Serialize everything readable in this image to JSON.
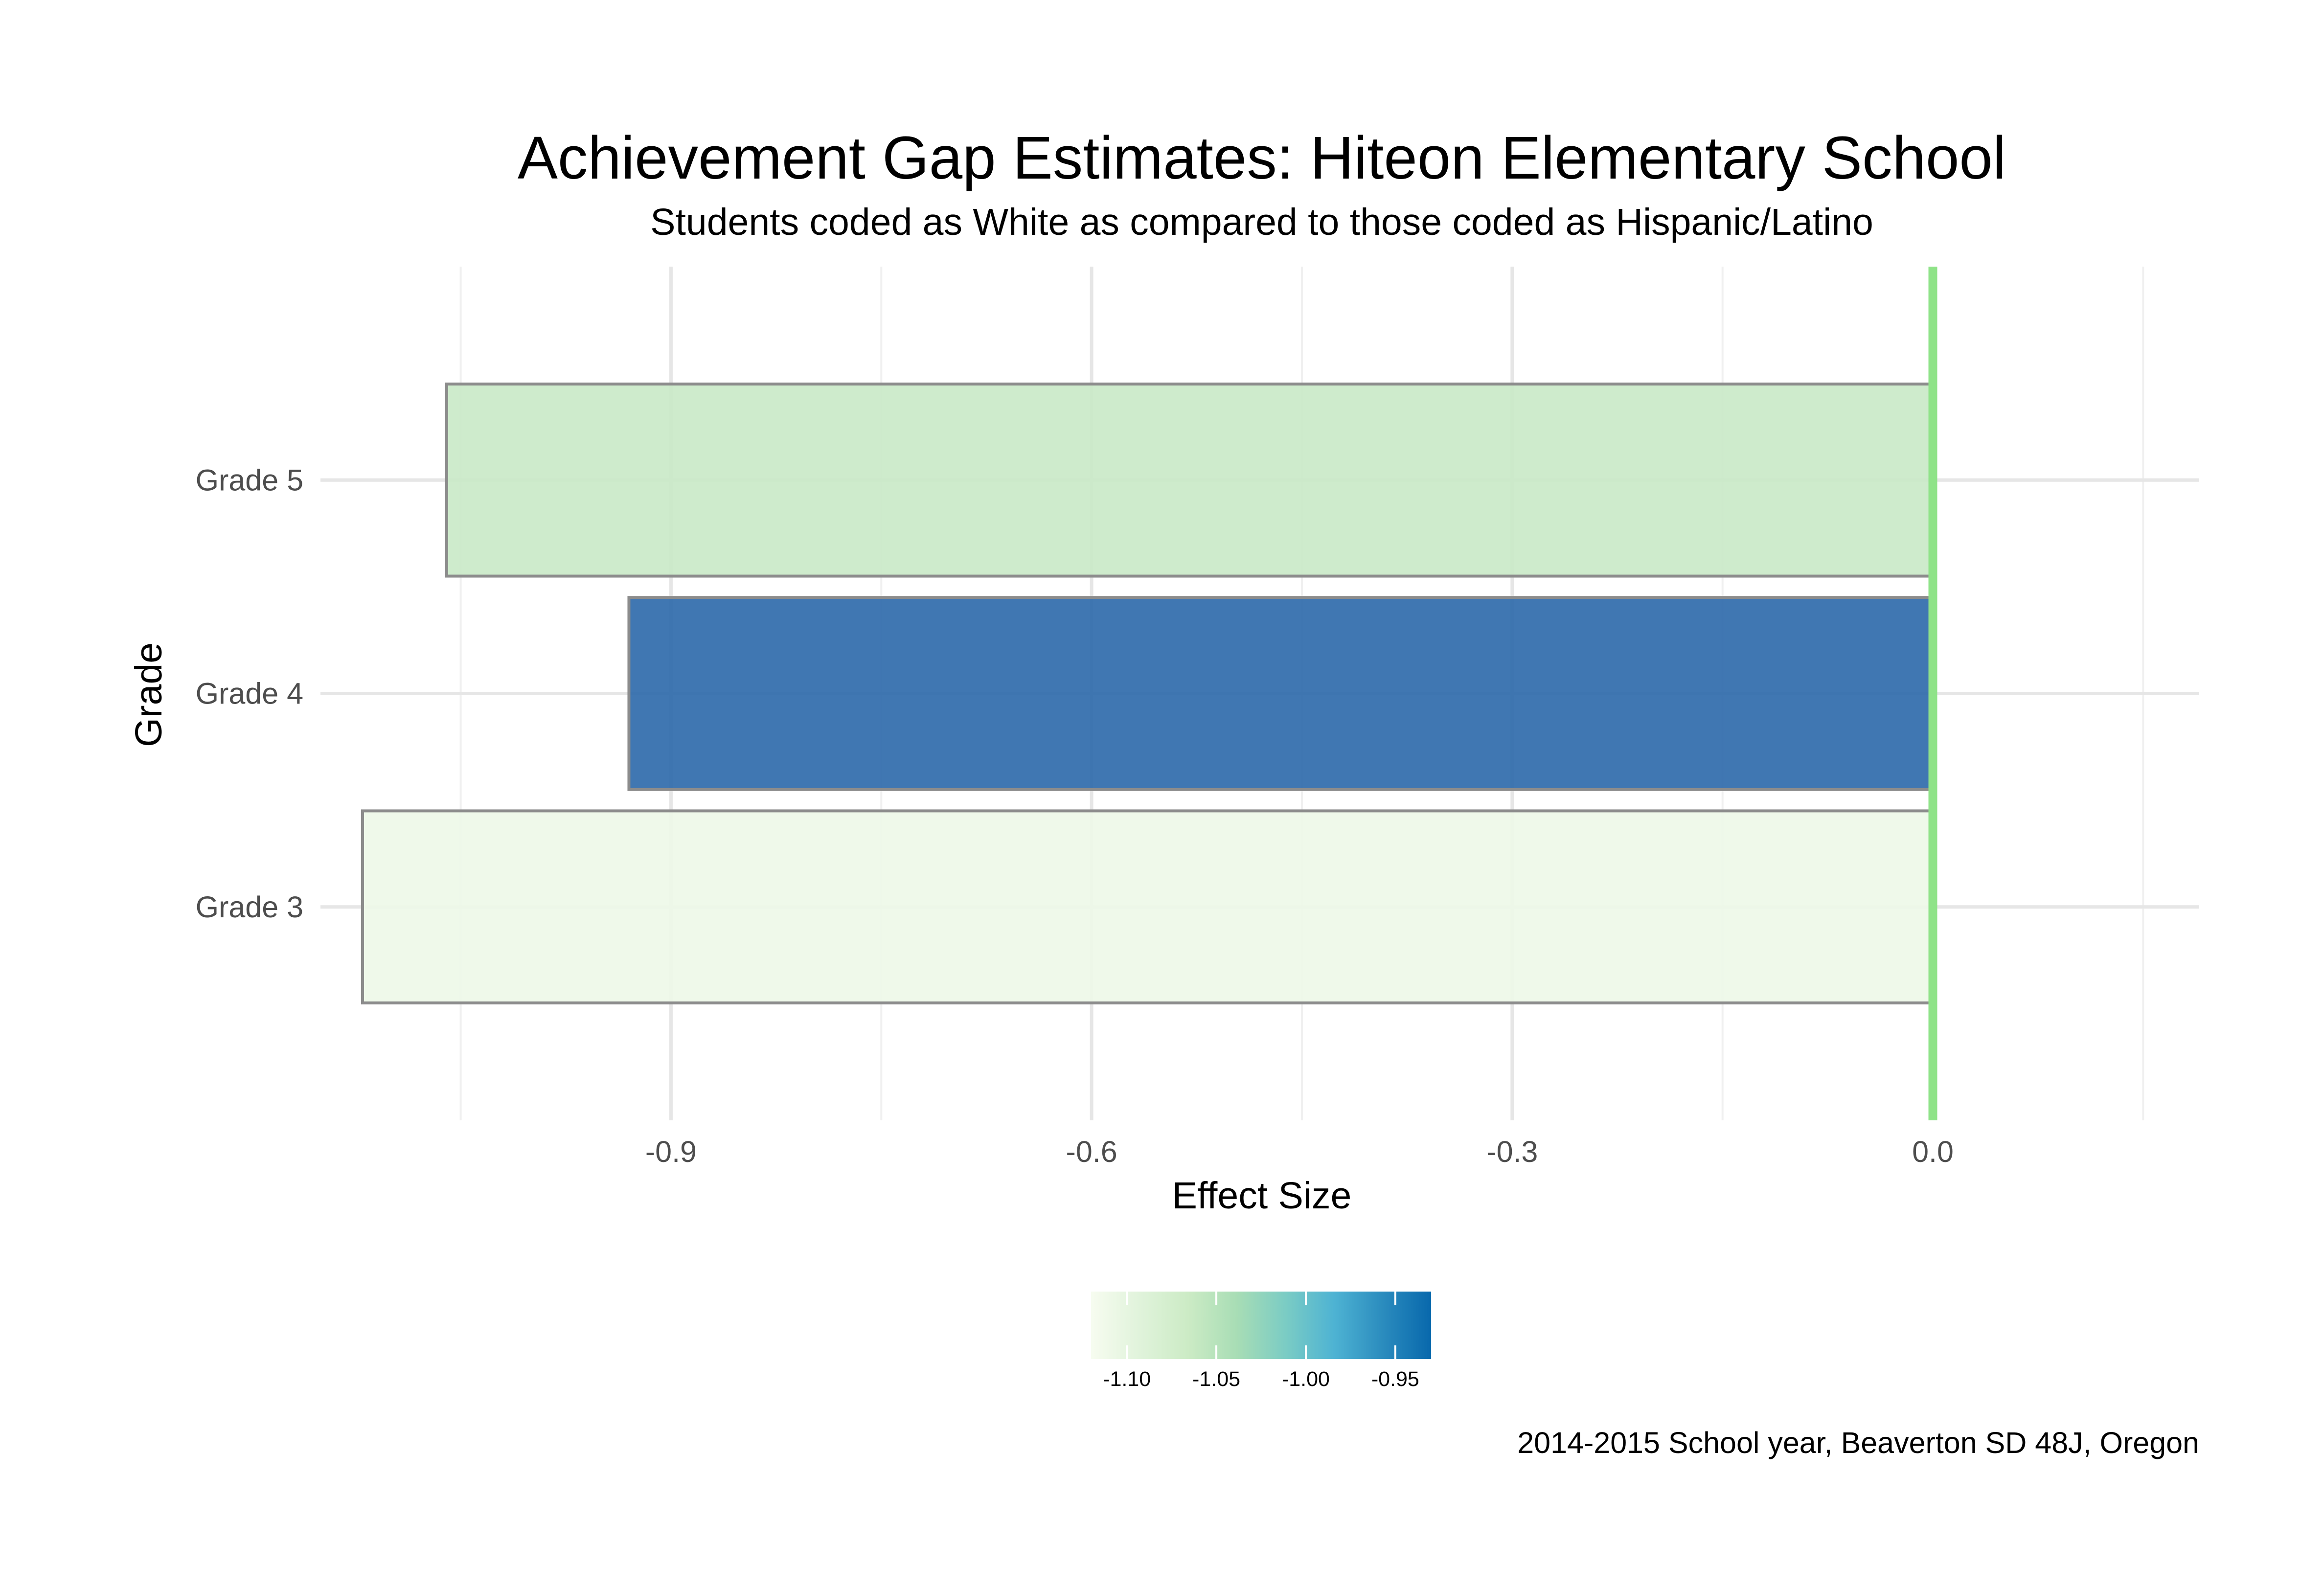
{
  "chart_data": {
    "type": "bar",
    "orientation": "horizontal",
    "title": "Achievement Gap Estimates: Hiteon Elementary School",
    "subtitle": "Students coded as White as compared to those coded as Hispanic/Latino",
    "xlabel": "Effect Size",
    "ylabel": "Grade",
    "caption": "2014-2015 School year, Beaverton SD 48J, Oregon",
    "categories": [
      "Grade 3",
      "Grade 4",
      "Grade 5"
    ],
    "values": [
      -1.12,
      -0.93,
      -1.06
    ],
    "xlim": [
      -1.15,
      0.19
    ],
    "xticks": [
      -0.9,
      -0.6,
      -0.3,
      0.0
    ],
    "xtick_labels": [
      "-0.9",
      "-0.6",
      "-0.3",
      "0.0"
    ],
    "reference_line": {
      "x": 0,
      "color": "#8fe388"
    },
    "grid": true,
    "bar_outline": "#8c8c8c",
    "bar_colors": [
      "#edf8e8",
      "#2b68aa",
      "#c9e9c6"
    ],
    "colorbar": {
      "range": [
        -1.12,
        -0.93
      ],
      "ticks": [
        -1.1,
        -1.05,
        -1.0,
        -0.95
      ],
      "tick_labels": [
        "-1.10",
        "-1.05",
        "-1.00",
        "-0.95"
      ],
      "placement": "bottom",
      "colors": [
        "#f7fcf0",
        "#e0f3db",
        "#ccebc5",
        "#a8ddb5",
        "#7bccc4",
        "#4eb3d3",
        "#2b8cbe",
        "#0868ac"
      ]
    }
  }
}
